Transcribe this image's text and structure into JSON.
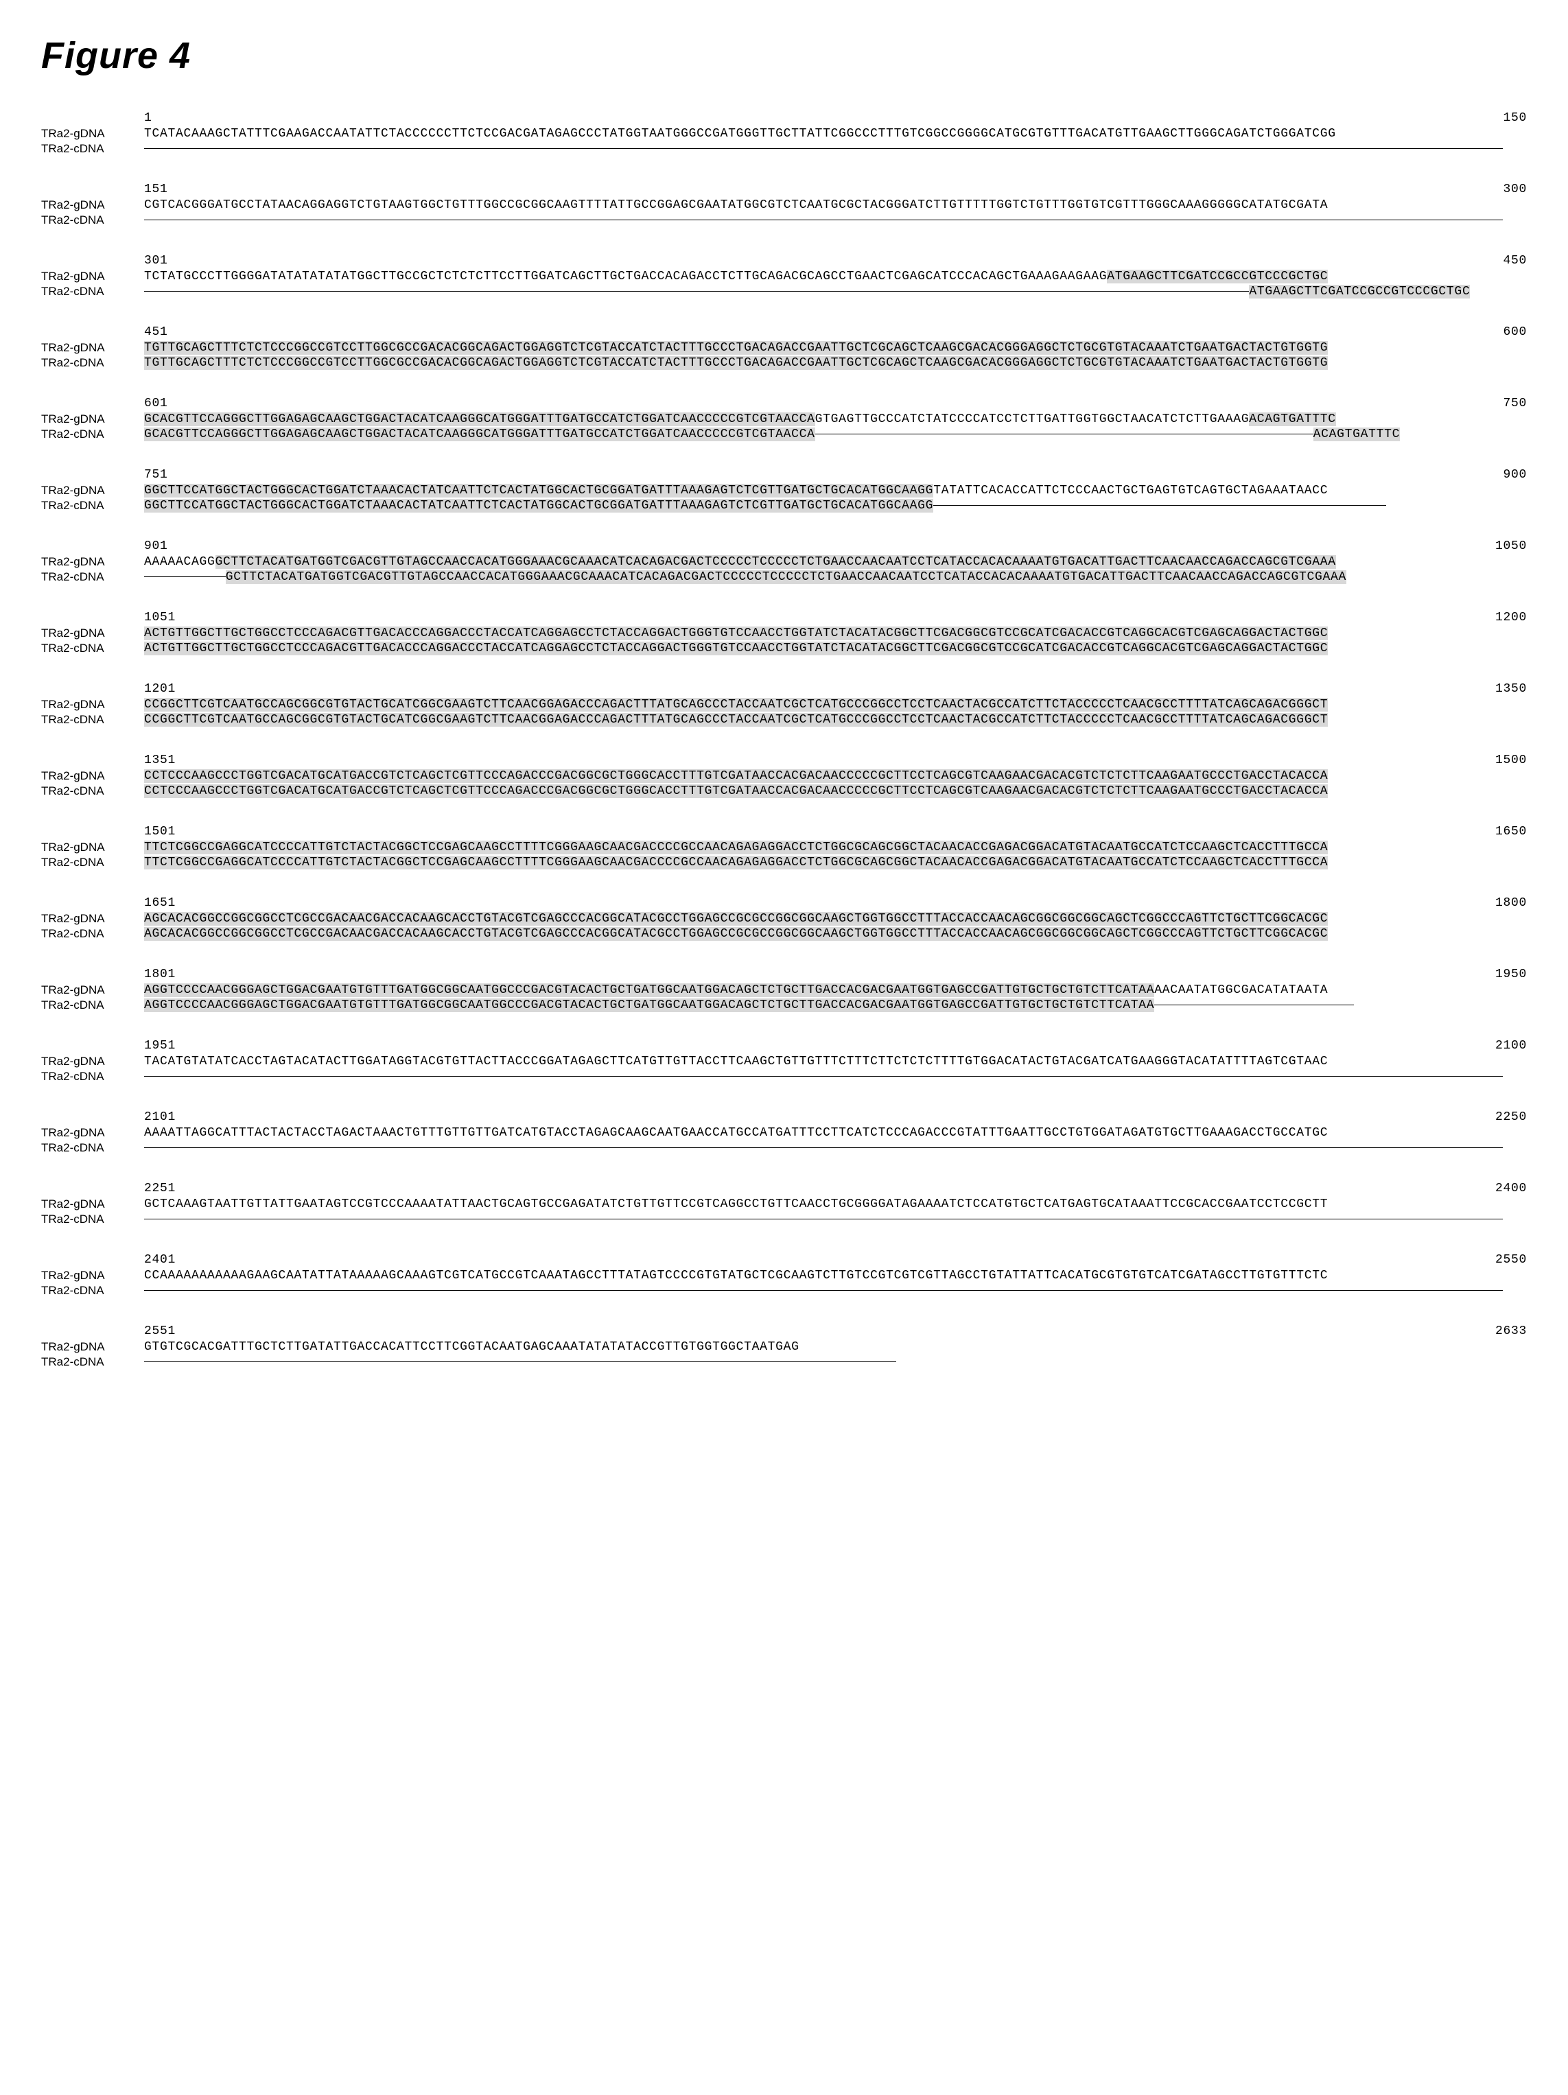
{
  "figure_title": "Figure 4",
  "block_label_gdna": "TRa2-gDNA",
  "block_label_cdna": "TRa2-cDNA",
  "font_family_title": "Arial",
  "font_family_seq": "Courier New",
  "title_fontsize": 54,
  "seq_fontsize": 18,
  "label_fontsize": 17,
  "highlight_color": "#d8d8d8",
  "background_color": "#ffffff",
  "text_color": "#000000",
  "line_letter_spacing": 0.7,
  "block_spacing": 38,
  "label_col_width": 150,
  "blocks": [
    {
      "start": 1,
      "end": 150,
      "gdna": [
        {
          "t": "TCATACAAAGCTATTTCGAAGACCAATATTCTACCCCCCTTCTCCGACGATAGAGCCCTATGGTAATGGGCCGATGGGTTGCTTATTCGGCCCTTTGTCGGCCGGGGCATGCGTGTTTGACATGTTGAAGCTTGGGCAGATCTGGGATCGG",
          "h": false
        }
      ],
      "cdna": "gap"
    },
    {
      "start": 151,
      "end": 300,
      "gdna": [
        {
          "t": "CGTCACGGGATGCCTATAACAGGAGGTCTGTAAGTGGCTGTTTGGCCGCGGCAAGTTTTATTGCCGGAGCGAATATGGCGTCTCAATGCGCTACGGGATCTTGTTTTTGGTCTGTTTGGTGTCGTTTGGGCAAAGGGGGCATATGCGATA",
          "h": false
        }
      ],
      "cdna": "gap"
    },
    {
      "start": 301,
      "end": 450,
      "gdna": [
        {
          "t": "TCTATGCCCTTGGGGATATATATATATGGCTTGCCGCTCTCTCTTCCTTGGATCAGCTTGCTGACCACAGACCTCTTGCAGACGCAGCCTGAACTCGAGCATCCCACAGCTGAAAGAAGAAG",
          "h": false
        },
        {
          "t": "ATGAAGCTTCGATCCGCCGTCCCGCTGC",
          "h": true
        }
      ],
      "cdna": [
        {
          "t": "ATGAAGCTTCGATCCGCCGTCCCGCTGC",
          "h": true,
          "pad": 122
        }
      ]
    },
    {
      "start": 451,
      "end": 600,
      "gdna": [
        {
          "t": "TGTTGCAGCTTTCTCTCCCGGCCGTCCTTGGCGCCGACACGGCAGACTGGAGGTCTCGTACCATCTACTTTGCCCTGACAGACCGAATTGCTCGCAGCTCAAGCGACACGGGAGGCTCTGCGTGTACAAATCTGAATGACTACTGTGGTG",
          "h": true
        }
      ],
      "cdna": [
        {
          "t": "TGTTGCAGCTTTCTCTCCCGGCCGTCCTTGGCGCCGACACGGCAGACTGGAGGTCTCGTACCATCTACTTTGCCCTGACAGACCGAATTGCTCGCAGCTCAAGCGACACGGGAGGCTCTGCGTGTACAAATCTGAATGACTACTGTGGTG",
          "h": true
        }
      ]
    },
    {
      "start": 601,
      "end": 750,
      "gdna": [
        {
          "t": "GCACGTTCCAGGGCTTGGAGAGCAAGCTGGACTACATCAAGGGCATGGGATTTGATGCCATCTGGATCAACCCCCGTCGTAACCA",
          "h": true
        },
        {
          "t": "GTGAGTTGCCCATCTATCCCCATCCTCTTGATTGGTGGCTAACATCTCTTGAAAG",
          "h": false
        },
        {
          "t": "ACAGTGATTTC",
          "h": true
        }
      ],
      "cdna": [
        {
          "t": "GCACGTTCCAGGGCTTGGAGAGCAAGCTGGACTACATCAAGGGCATGGGATTTGATGCCATCTGGATCAACCCCCGTCGTAACCA",
          "h": true
        },
        {
          "t": "-------------------------------------------------------",
          "h": false,
          "dash": true
        },
        {
          "t": "ACAGTGATTTC",
          "h": true
        }
      ]
    },
    {
      "start": 751,
      "end": 900,
      "gdna": [
        {
          "t": "GGCTTCCATGGCTACTGGGCACTGGATCTAAACACTATCAATTCTCACTATGGCACTGCGGATGATTTAAAGAGTCTCGTTGATGCTGCACATGGCAAGG",
          "h": true
        },
        {
          "t": "TATATTCACACCATTCTCCCAACTGCTGAGTGTCAGTGCTAGAAATAACC",
          "h": false
        }
      ],
      "cdna": [
        {
          "t": "GGCTTCCATGGCTACTGGGCACTGGATCTAAACACTATCAATTCTCACTATGGCACTGCGGATGATTTAAAGAGTCTCGTTGATGCTGCACATGGCAAGG",
          "h": true
        },
        {
          "t": "--------------------------------------------------",
          "h": false,
          "dash": true
        }
      ]
    },
    {
      "start": 901,
      "end": 1050,
      "gdna": [
        {
          "t": "AAAAACAGG",
          "h": false
        },
        {
          "t": "GCTTCTACATGATGGTCGACGTTGTAGCCAACCACATGGGAAACGCAAACATCACAGACGACTCCCCCTCCCCCTCTGAACCAACAATCCTCATACCACACAAAATGTGACATTGACTTCAACAACCAGACCAGCGTCGAAA",
          "h": true
        }
      ],
      "cdna": [
        {
          "t": "---------",
          "h": false,
          "dash": true
        },
        {
          "t": "GCTTCTACATGATGGTCGACGTTGTAGCCAACCACATGGGAAACGCAAACATCACAGACGACTCCCCCTCCCCCTCTGAACCAACAATCCTCATACCACACAAAATGTGACATTGACTTCAACAACCAGACCAGCGTCGAAA",
          "h": true
        }
      ]
    },
    {
      "start": 1051,
      "end": 1200,
      "gdna": [
        {
          "t": "ACTGTTGGCTTGCTGGCCTCCCAGACGTTGACACCCAGGACCCTACCATCAGGAGCCTCTACCAGGACTGGGTGTCCAACCTGGTATCTACATACGGCTTCGACGGCGTCCGCATCGACACCGTCAGGCACGTCGAGCAGGACTACTGGC",
          "h": true
        }
      ],
      "cdna": [
        {
          "t": "ACTGTTGGCTTGCTGGCCTCCCAGACGTTGACACCCAGGACCCTACCATCAGGAGCCTCTACCAGGACTGGGTGTCCAACCTGGTATCTACATACGGCTTCGACGGCGTCCGCATCGACACCGTCAGGCACGTCGAGCAGGACTACTGGC",
          "h": true
        }
      ]
    },
    {
      "start": 1201,
      "end": 1350,
      "gdna": [
        {
          "t": "CCGGCTTCGTCAATGCCAGCGGCGTGTACTGCATCGGCGAAGTCTTCAACGGAGACCCAGACTTTATGCAGCCCTACCAATCGCTCATGCCCGGCCTCCTCAACTACGCCATCTTCTACCCCCTCAACGCCTTTTATCAGCAGACGGGCT",
          "h": true
        }
      ],
      "cdna": [
        {
          "t": "CCGGCTTCGTCAATGCCAGCGGCGTGTACTGCATCGGCGAAGTCTTCAACGGAGACCCAGACTTTATGCAGCCCTACCAATCGCTCATGCCCGGCCTCCTCAACTACGCCATCTTCTACCCCCTCAACGCCTTTTATCAGCAGACGGGCT",
          "h": true
        }
      ]
    },
    {
      "start": 1351,
      "end": 1500,
      "gdna": [
        {
          "t": "CCTCCCAAGCCCTGGTCGACATGCATGACCGTCTCAGCTCGTTCCCAGACCCGACGGCGCTGGGCACCTTTGTCGATAACCACGACAACCCCCGCTTCCTCAGCGTCAAGAACGACACGTCTCTCTTCAAGAATGCCCTGACCTACACCA",
          "h": true
        }
      ],
      "cdna": [
        {
          "t": "CCTCCCAAGCCCTGGTCGACATGCATGACCGTCTCAGCTCGTTCCCAGACCCGACGGCGCTGGGCACCTTTGTCGATAACCACGACAACCCCCGCTTCCTCAGCGTCAAGAACGACACGTCTCTCTTCAAGAATGCCCTGACCTACACCA",
          "h": true
        }
      ]
    },
    {
      "start": 1501,
      "end": 1650,
      "gdna": [
        {
          "t": "TTCTCGGCCGAGGCATCCCCATTGTCTACTACGGCTCCGAGCAAGCCTTTTCGGGAAGCAACGACCCCGCCAACAGAGAGGACCTCTGGCGCAGCGGCTACAACACCGAGACGGACATGTACAATGCCATCTCCAAGCTCACCTTTGCCA",
          "h": true
        }
      ],
      "cdna": [
        {
          "t": "TTCTCGGCCGAGGCATCCCCATTGTCTACTACGGCTCCGAGCAAGCCTTTTCGGGAAGCAACGACCCCGCCAACAGAGAGGACCTCTGGCGCAGCGGCTACAACACCGAGACGGACATGTACAATGCCATCTCCAAGCTCACCTTTGCCA",
          "h": true
        }
      ]
    },
    {
      "start": 1651,
      "end": 1800,
      "gdna": [
        {
          "t": "AGCACACGGCCGGCGGCCTCGCCGACAACGACCACAAGCACCTGTACGTCGAGCCCACGGCATACGCCTGGAGCCGCGCCGGCGGCAAGCTGGTGGCCTTTACCACCAACAGCGGCGGCGGCAGCTCGGCCCAGTTCTGCTTCGGCACGC",
          "h": true
        }
      ],
      "cdna": [
        {
          "t": "AGCACACGGCCGGCGGCCTCGCCGACAACGACCACAAGCACCTGTACGTCGAGCCCACGGCATACGCCTGGAGCCGCGCCGGCGGCAAGCTGGTGGCCTTTACCACCAACAGCGGCGGCGGCAGCTCGGCCCAGTTCTGCTTCGGCACGC",
          "h": true
        }
      ]
    },
    {
      "start": 1801,
      "end": 1950,
      "gdna": [
        {
          "t": "AGGTCCCCAACGGGAGCTGGACGAATGTGTTTGATGGCGGCAATGGCCCGACGTACACTGCTGATGGCAATGGACAGCTCTGCTTGACCACGACGAATGGTGAGCCGATTGTGCTGCTGTCTTCATAA",
          "h": true
        },
        {
          "t": "AACAATATGGCGACATATAATA",
          "h": false
        }
      ],
      "cdna": [
        {
          "t": "AGGTCCCCAACGGGAGCTGGACGAATGTGTTTGATGGCGGCAATGGCCCGACGTACACTGCTGATGGCAATGGACAGCTCTGCTTGACCACGACGAATGGTGAGCCGATTGTGCTGCTGTCTTCATAA",
          "h": true
        },
        {
          "t": "----------------------",
          "h": false,
          "dash": true
        }
      ]
    },
    {
      "start": 1951,
      "end": 2100,
      "gdna": [
        {
          "t": "TACATGTATATCACCTAGTACATACTTGGATAGGTACGTGTTACTTACCCGGATAGAGCTTCATGTTGTTACCTTCAAGCTGTTGTTTCTTTCTTCTCTCTTTTGTGGACATACTGTACGATCATGAAGGGTACATATTTTAGTCGTAAC",
          "h": false
        }
      ],
      "cdna": "gap"
    },
    {
      "start": 2101,
      "end": 2250,
      "gdna": [
        {
          "t": "AAAATTAGGCATTTACTACTACCTAGACTAAACTGTTTGTTGTTGATCATGTACCTAGAGCAAGCAATGAACCATGCCATGATTTCCTTCATCTCCCAGACCCGTATTTGAATTGCCTGTGGATAGATGTGCTTGAAAGACCTGCCATGC",
          "h": false
        }
      ],
      "cdna": "gap"
    },
    {
      "start": 2251,
      "end": 2400,
      "gdna": [
        {
          "t": "GCTCAAAGTAATTGTTATTGAATAGTCCGTCCCAAAATATTAACTGCAGTGCCGAGATATCTGTTGTTCCGTCAGGCCTGTTCAACCTGCGGGGATAGAAAATCTCCATGTGCTCATGAGTGCATAAATTCCGCACCGAATCCTCCGCTT",
          "h": false
        }
      ],
      "cdna": "gap"
    },
    {
      "start": 2401,
      "end": 2550,
      "gdna": [
        {
          "t": "CCAAAAAAAAAAAGAAGCAATATTATAAAAAGCAAAGTCGTCATGCCGTCAAATAGCCTTTATAGTCCCCGTGTATGCTCGCAAGTCTTGTCCGTCGTCGTTAGCCTGTATTATTCACATGCGTGTGTCATCGATAGCCTTGTGTTTCTC",
          "h": false
        }
      ],
      "cdna": "gap"
    },
    {
      "start": 2551,
      "end": 2633,
      "gdna": [
        {
          "t": "GTGTCGCACGATTTGCTCTTGATATTGACCACATTCCTTCGGTACAATGAGCAAATATATATACCGTTGTGGTGGCTAATGAG",
          "h": false
        }
      ],
      "cdna": "gap"
    }
  ]
}
